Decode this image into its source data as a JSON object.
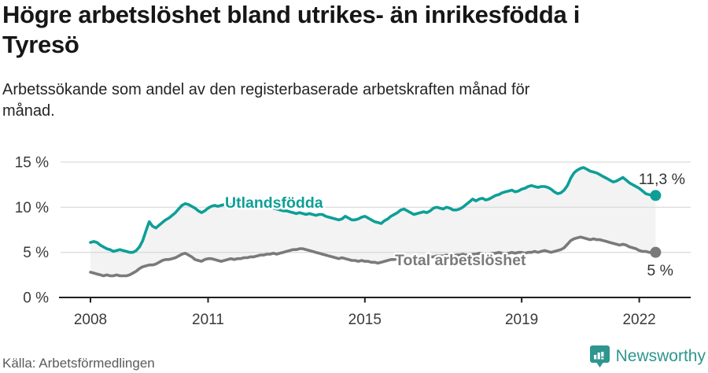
{
  "header": {
    "title": "Högre arbetslöshet bland utrikes- än inrikesfödda i Tyresö",
    "subtitle": "Arbetssökande som andel av den registerbaserade arbetskraften månad för månad."
  },
  "footer": {
    "source": "Källa: Arbetsförmedlingen",
    "brand": "Newsworthy"
  },
  "colors": {
    "accent_teal": "#0D9F97",
    "series_gray": "#7a7a7a",
    "band_fill": "#f3f3f3",
    "grid": "#dcdcdc",
    "axis": "#1f1f1f",
    "tick_label": "#3a3a3a",
    "value_label": "#333333",
    "brand_teal": "#2E968F",
    "halo": "#ffffff"
  },
  "chart_data": {
    "type": "line",
    "title": "Högre arbetslöshet bland utrikes- än inrikesfödda i Tyresö",
    "unit": "%",
    "x_start": "2008-01",
    "x_end": "2022-06",
    "x_interval_months": 1,
    "x_ticks": [
      "2008",
      "2011",
      "2015",
      "2019",
      "2022"
    ],
    "x_tick_years": [
      2008,
      2011,
      2015,
      2019,
      2022
    ],
    "y_ticks": [
      "0 %",
      "5 %",
      "10 %",
      "15 %"
    ],
    "y_tick_values": [
      0,
      5,
      10,
      15
    ],
    "ylim": [
      0,
      15.8
    ],
    "grid": "horizontal",
    "band_between_series": true,
    "series": [
      {
        "name": "Utlandsfödda",
        "color": "#0D9F97",
        "end_label": "11,3 %",
        "end_value": 11.3,
        "values": [
          6.1,
          6.2,
          6.1,
          5.8,
          5.6,
          5.4,
          5.3,
          5.1,
          5.2,
          5.3,
          5.2,
          5.1,
          5.0,
          5.0,
          5.2,
          5.6,
          6.3,
          7.4,
          8.4,
          7.9,
          7.7,
          8.0,
          8.3,
          8.6,
          8.8,
          9.1,
          9.4,
          9.8,
          10.2,
          10.4,
          10.3,
          10.1,
          9.9,
          9.6,
          9.4,
          9.6,
          9.9,
          10.1,
          10.2,
          10.1,
          10.2,
          10.3,
          10.4,
          10.3,
          10.2,
          10.3,
          10.2,
          10.1,
          10.2,
          10.3,
          10.2,
          10.1,
          10.0,
          10.1,
          10.2,
          10.0,
          9.9,
          9.8,
          9.7,
          9.6,
          9.6,
          9.5,
          9.4,
          9.3,
          9.4,
          9.3,
          9.2,
          9.3,
          9.2,
          9.1,
          9.2,
          9.2,
          9.0,
          8.9,
          8.8,
          8.7,
          8.6,
          8.7,
          9.0,
          8.8,
          8.6,
          8.6,
          8.7,
          8.9,
          9.0,
          8.8,
          8.6,
          8.4,
          8.3,
          8.2,
          8.5,
          8.7,
          9.0,
          9.2,
          9.4,
          9.7,
          9.8,
          9.6,
          9.4,
          9.2,
          9.3,
          9.4,
          9.5,
          9.4,
          9.6,
          9.9,
          10.0,
          9.9,
          9.8,
          10.0,
          9.9,
          9.7,
          9.7,
          9.8,
          10.0,
          10.3,
          10.6,
          10.9,
          10.7,
          10.9,
          11.0,
          10.8,
          10.9,
          11.1,
          11.3,
          11.4,
          11.6,
          11.7,
          11.8,
          11.9,
          11.7,
          11.8,
          12.0,
          12.1,
          12.3,
          12.4,
          12.3,
          12.2,
          12.3,
          12.3,
          12.2,
          12.0,
          11.7,
          11.5,
          11.6,
          11.9,
          12.4,
          13.2,
          13.8,
          14.1,
          14.3,
          14.4,
          14.2,
          14.0,
          13.9,
          13.8,
          13.6,
          13.4,
          13.2,
          13.0,
          12.8,
          12.9,
          13.1,
          13.3,
          13.0,
          12.7,
          12.5,
          12.3,
          12.1,
          11.8,
          11.5,
          11.4,
          11.3,
          11.3
        ]
      },
      {
        "name": "Total arbetslöshet",
        "color": "#7a7a7a",
        "end_label": "5 %",
        "end_value": 5.0,
        "values": [
          2.8,
          2.7,
          2.6,
          2.5,
          2.4,
          2.5,
          2.4,
          2.4,
          2.5,
          2.4,
          2.4,
          2.4,
          2.5,
          2.7,
          2.9,
          3.2,
          3.4,
          3.5,
          3.6,
          3.6,
          3.7,
          3.9,
          4.1,
          4.2,
          4.2,
          4.3,
          4.4,
          4.6,
          4.8,
          4.9,
          4.7,
          4.5,
          4.2,
          4.1,
          4.0,
          4.2,
          4.3,
          4.3,
          4.2,
          4.1,
          4.0,
          4.1,
          4.2,
          4.3,
          4.2,
          4.3,
          4.3,
          4.4,
          4.4,
          4.5,
          4.5,
          4.6,
          4.7,
          4.7,
          4.8,
          4.8,
          4.9,
          4.8,
          4.9,
          5.0,
          5.1,
          5.2,
          5.3,
          5.3,
          5.4,
          5.4,
          5.3,
          5.2,
          5.1,
          5.0,
          4.9,
          4.8,
          4.7,
          4.6,
          4.5,
          4.4,
          4.3,
          4.4,
          4.3,
          4.2,
          4.1,
          4.1,
          4.0,
          4.1,
          4.0,
          4.0,
          3.9,
          3.9,
          3.8,
          3.9,
          4.0,
          4.1,
          4.2,
          4.2,
          4.3,
          4.3,
          4.3,
          4.3,
          4.4,
          4.4,
          4.4,
          4.5,
          4.5,
          4.4,
          4.5,
          4.5,
          4.6,
          4.6,
          4.6,
          4.7,
          4.6,
          4.6,
          4.7,
          4.7,
          4.8,
          4.7,
          4.7,
          4.8,
          4.8,
          4.9,
          4.9,
          4.8,
          4.8,
          4.9,
          4.9,
          5.0,
          4.9,
          4.9,
          4.9,
          5.0,
          4.9,
          5.0,
          5.0,
          4.9,
          5.0,
          5.0,
          5.1,
          5.0,
          5.1,
          5.2,
          5.1,
          5.0,
          5.1,
          5.2,
          5.3,
          5.5,
          5.9,
          6.3,
          6.5,
          6.6,
          6.7,
          6.6,
          6.5,
          6.4,
          6.5,
          6.4,
          6.4,
          6.3,
          6.2,
          6.1,
          6.0,
          5.9,
          5.8,
          5.9,
          5.8,
          5.6,
          5.5,
          5.4,
          5.2,
          5.1,
          5.1,
          5.0,
          5.0,
          5.0
        ]
      }
    ]
  }
}
